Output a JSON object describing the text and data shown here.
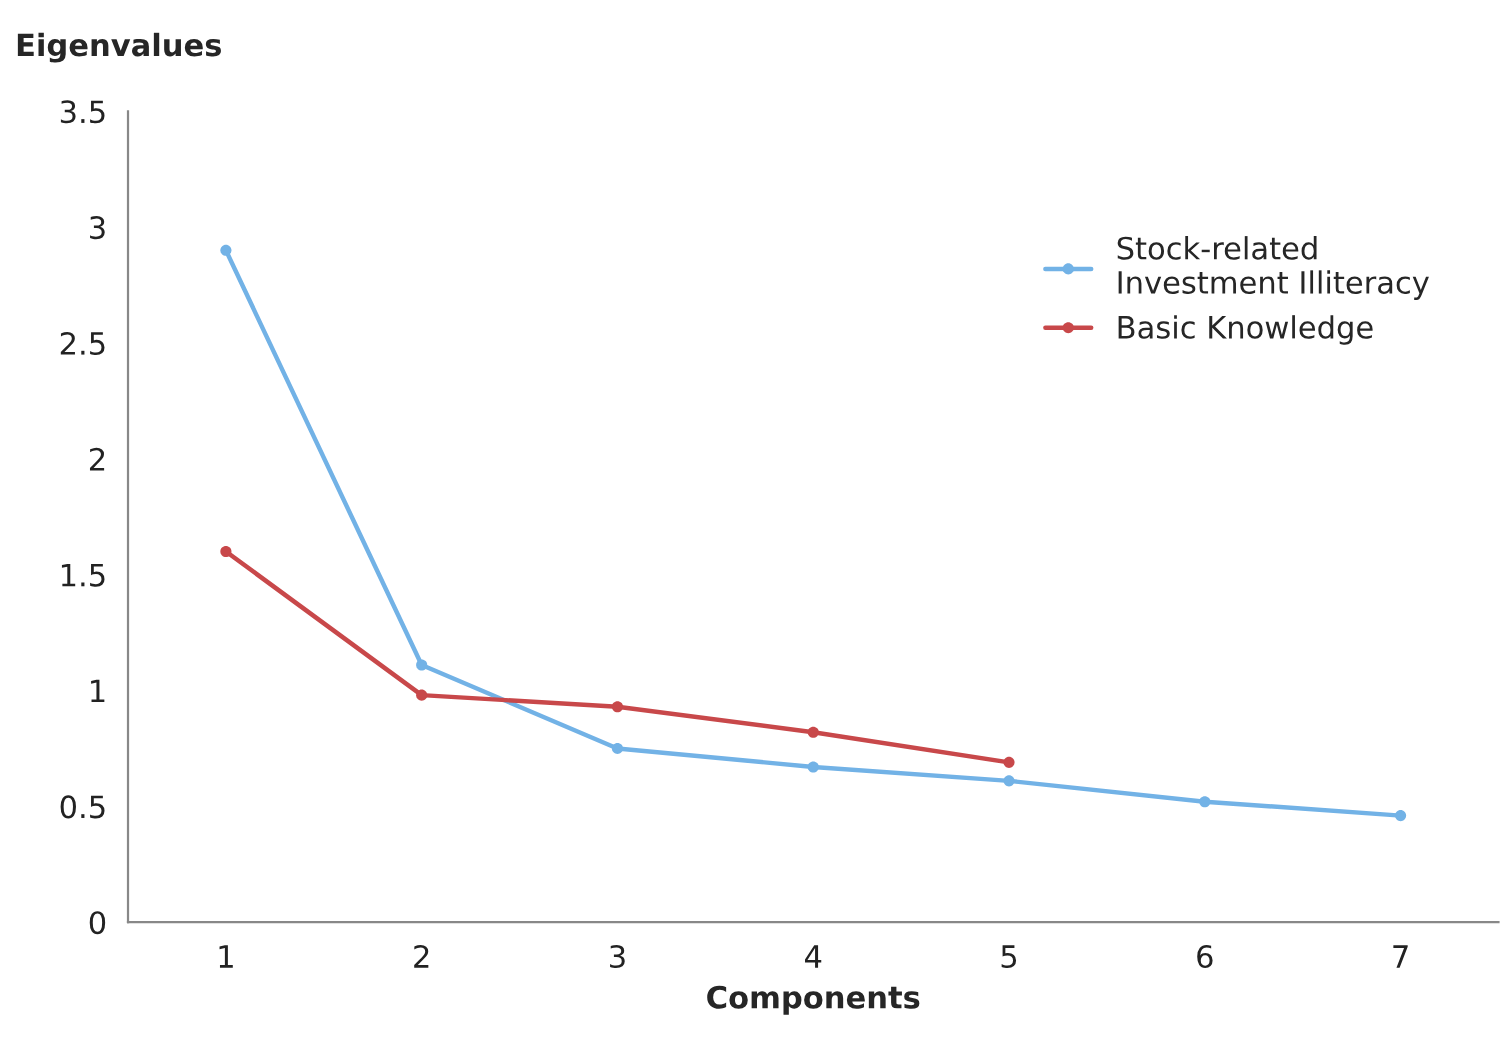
{
  "chart_data": {
    "type": "line",
    "xlabel": "Components",
    "ylabel": "Eigenvalues",
    "categories": [
      "1",
      "2",
      "3",
      "4",
      "5",
      "6",
      "7"
    ],
    "series": [
      {
        "name": "Stock-related\nInvestment Illiteracy",
        "color": "#72b2e6",
        "values": [
          2.9,
          1.11,
          0.75,
          0.67,
          0.61,
          0.52,
          0.46
        ]
      },
      {
        "name": "Basic Knowledge",
        "color": "#c8484a",
        "values": [
          1.6,
          0.98,
          0.93,
          0.82,
          0.69,
          null,
          null
        ]
      }
    ],
    "ylim": [
      0,
      3.5
    ],
    "yticks": [
      0,
      0.5,
      1,
      1.5,
      2,
      2.5,
      3,
      3.5
    ],
    "grid": false,
    "legend": "top right",
    "marker": "circle",
    "line_style": "solid"
  }
}
